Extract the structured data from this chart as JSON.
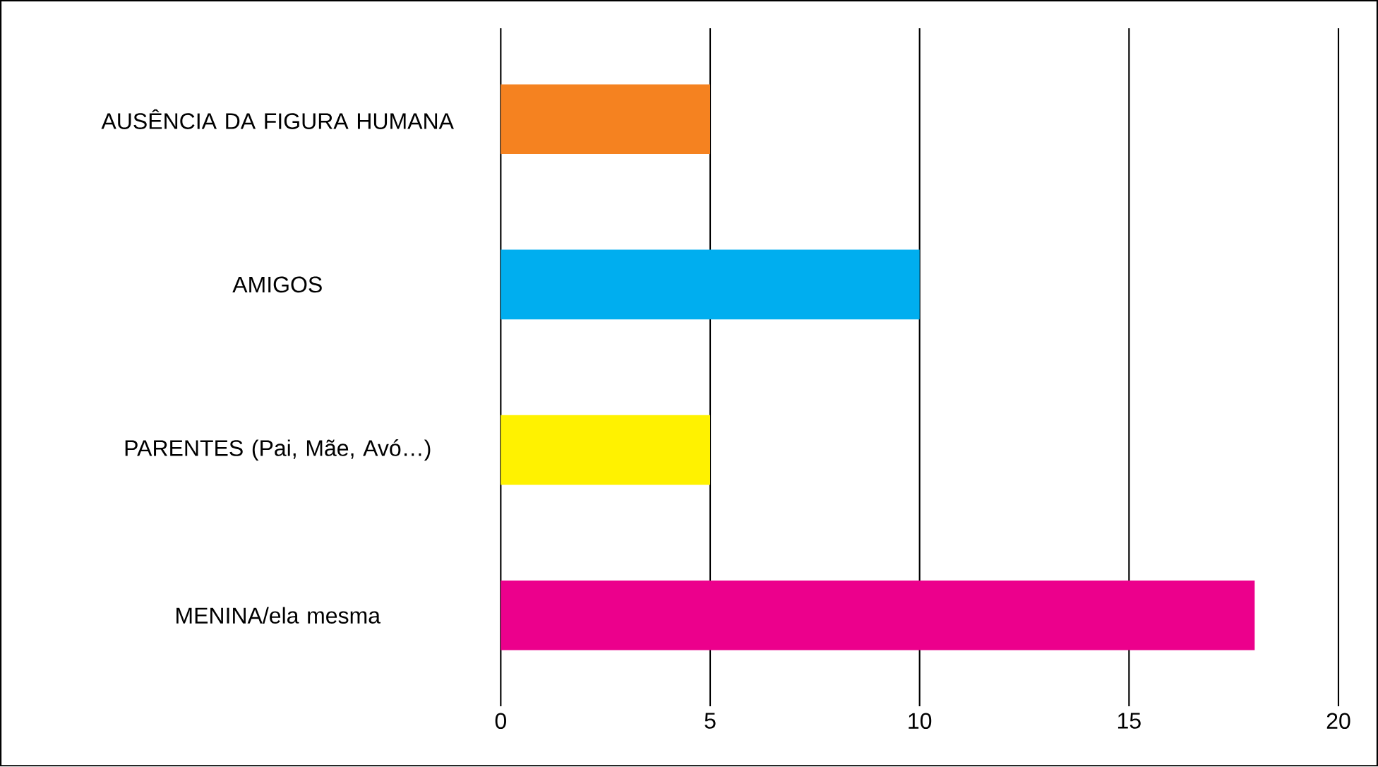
{
  "chart_data": {
    "type": "bar",
    "orientation": "horizontal",
    "categories": [
      "AUSÊNCIA DA FIGURA HUMANA",
      "AMIGOS",
      "PARENTES (Pai, Mãe, Avó…)",
      "MENINA/ela mesma"
    ],
    "values": [
      5,
      10,
      5,
      18
    ],
    "colors": [
      "#f58220",
      "#00aeef",
      "#fff200",
      "#ec008c"
    ],
    "xlim": [
      0,
      20
    ],
    "xticks": [
      0,
      5,
      10,
      15,
      20
    ],
    "grid": "x"
  }
}
